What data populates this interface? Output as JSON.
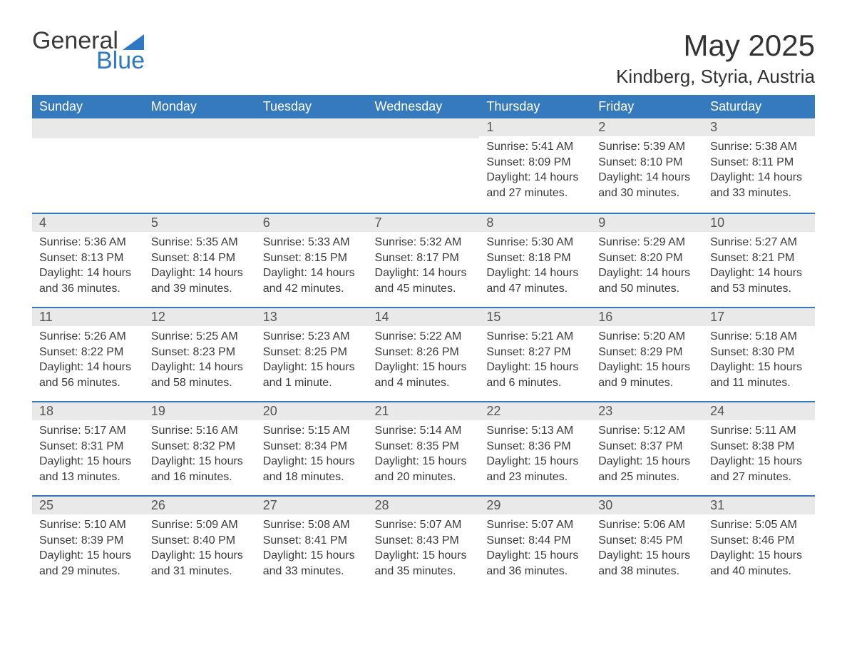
{
  "logo": {
    "text1": "General",
    "text2": "Blue",
    "accent_color": "#2f78c4"
  },
  "title": "May 2025",
  "location": "Kindberg, Styria, Austria",
  "colors": {
    "header_bg": "#357abd",
    "header_text": "#ffffff",
    "daynum_bg": "#e9e9e9",
    "row_border": "#357abd",
    "text": "#3a3a3a"
  },
  "fonts": {
    "title_pt": 42,
    "location_pt": 26,
    "header_pt": 18,
    "body_pt": 16
  },
  "layout": {
    "columns": 7,
    "rows": 5,
    "leading_blanks": 4
  },
  "columns": [
    "Sunday",
    "Monday",
    "Tuesday",
    "Wednesday",
    "Thursday",
    "Friday",
    "Saturday"
  ],
  "days": [
    {
      "n": "1",
      "sunrise": "5:41 AM",
      "sunset": "8:09 PM",
      "daylight": "14 hours and 27 minutes."
    },
    {
      "n": "2",
      "sunrise": "5:39 AM",
      "sunset": "8:10 PM",
      "daylight": "14 hours and 30 minutes."
    },
    {
      "n": "3",
      "sunrise": "5:38 AM",
      "sunset": "8:11 PM",
      "daylight": "14 hours and 33 minutes."
    },
    {
      "n": "4",
      "sunrise": "5:36 AM",
      "sunset": "8:13 PM",
      "daylight": "14 hours and 36 minutes."
    },
    {
      "n": "5",
      "sunrise": "5:35 AM",
      "sunset": "8:14 PM",
      "daylight": "14 hours and 39 minutes."
    },
    {
      "n": "6",
      "sunrise": "5:33 AM",
      "sunset": "8:15 PM",
      "daylight": "14 hours and 42 minutes."
    },
    {
      "n": "7",
      "sunrise": "5:32 AM",
      "sunset": "8:17 PM",
      "daylight": "14 hours and 45 minutes."
    },
    {
      "n": "8",
      "sunrise": "5:30 AM",
      "sunset": "8:18 PM",
      "daylight": "14 hours and 47 minutes."
    },
    {
      "n": "9",
      "sunrise": "5:29 AM",
      "sunset": "8:20 PM",
      "daylight": "14 hours and 50 minutes."
    },
    {
      "n": "10",
      "sunrise": "5:27 AM",
      "sunset": "8:21 PM",
      "daylight": "14 hours and 53 minutes."
    },
    {
      "n": "11",
      "sunrise": "5:26 AM",
      "sunset": "8:22 PM",
      "daylight": "14 hours and 56 minutes."
    },
    {
      "n": "12",
      "sunrise": "5:25 AM",
      "sunset": "8:23 PM",
      "daylight": "14 hours and 58 minutes."
    },
    {
      "n": "13",
      "sunrise": "5:23 AM",
      "sunset": "8:25 PM",
      "daylight": "15 hours and 1 minute."
    },
    {
      "n": "14",
      "sunrise": "5:22 AM",
      "sunset": "8:26 PM",
      "daylight": "15 hours and 4 minutes."
    },
    {
      "n": "15",
      "sunrise": "5:21 AM",
      "sunset": "8:27 PM",
      "daylight": "15 hours and 6 minutes."
    },
    {
      "n": "16",
      "sunrise": "5:20 AM",
      "sunset": "8:29 PM",
      "daylight": "15 hours and 9 minutes."
    },
    {
      "n": "17",
      "sunrise": "5:18 AM",
      "sunset": "8:30 PM",
      "daylight": "15 hours and 11 minutes."
    },
    {
      "n": "18",
      "sunrise": "5:17 AM",
      "sunset": "8:31 PM",
      "daylight": "15 hours and 13 minutes."
    },
    {
      "n": "19",
      "sunrise": "5:16 AM",
      "sunset": "8:32 PM",
      "daylight": "15 hours and 16 minutes."
    },
    {
      "n": "20",
      "sunrise": "5:15 AM",
      "sunset": "8:34 PM",
      "daylight": "15 hours and 18 minutes."
    },
    {
      "n": "21",
      "sunrise": "5:14 AM",
      "sunset": "8:35 PM",
      "daylight": "15 hours and 20 minutes."
    },
    {
      "n": "22",
      "sunrise": "5:13 AM",
      "sunset": "8:36 PM",
      "daylight": "15 hours and 23 minutes."
    },
    {
      "n": "23",
      "sunrise": "5:12 AM",
      "sunset": "8:37 PM",
      "daylight": "15 hours and 25 minutes."
    },
    {
      "n": "24",
      "sunrise": "5:11 AM",
      "sunset": "8:38 PM",
      "daylight": "15 hours and 27 minutes."
    },
    {
      "n": "25",
      "sunrise": "5:10 AM",
      "sunset": "8:39 PM",
      "daylight": "15 hours and 29 minutes."
    },
    {
      "n": "26",
      "sunrise": "5:09 AM",
      "sunset": "8:40 PM",
      "daylight": "15 hours and 31 minutes."
    },
    {
      "n": "27",
      "sunrise": "5:08 AM",
      "sunset": "8:41 PM",
      "daylight": "15 hours and 33 minutes."
    },
    {
      "n": "28",
      "sunrise": "5:07 AM",
      "sunset": "8:43 PM",
      "daylight": "15 hours and 35 minutes."
    },
    {
      "n": "29",
      "sunrise": "5:07 AM",
      "sunset": "8:44 PM",
      "daylight": "15 hours and 36 minutes."
    },
    {
      "n": "30",
      "sunrise": "5:06 AM",
      "sunset": "8:45 PM",
      "daylight": "15 hours and 38 minutes."
    },
    {
      "n": "31",
      "sunrise": "5:05 AM",
      "sunset": "8:46 PM",
      "daylight": "15 hours and 40 minutes."
    }
  ],
  "labels": {
    "sunrise": "Sunrise: ",
    "sunset": "Sunset: ",
    "daylight": "Daylight: "
  }
}
